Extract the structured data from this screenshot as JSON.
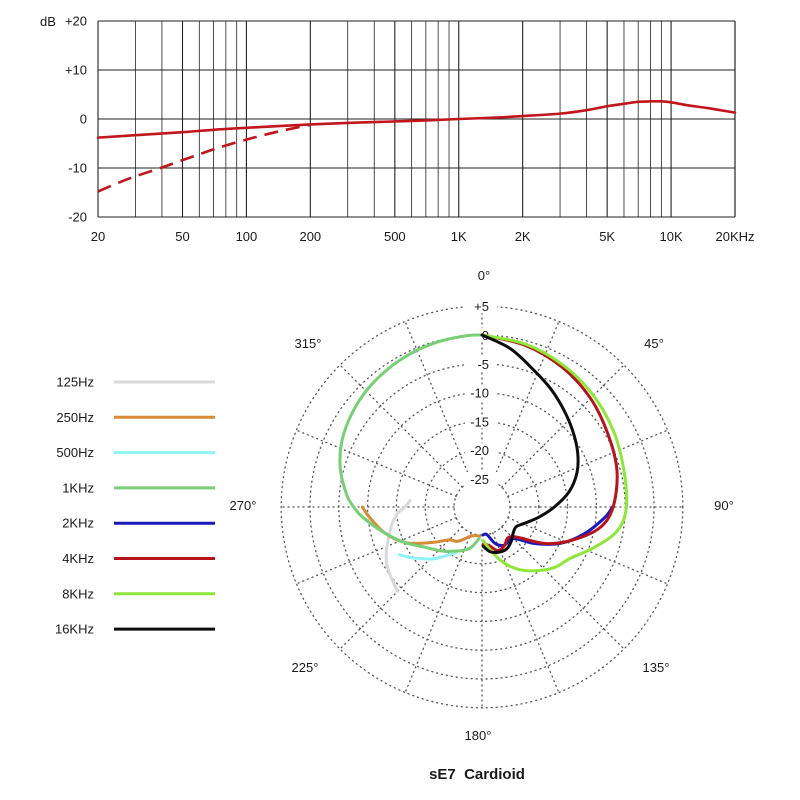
{
  "chart_data": [
    {
      "type": "line",
      "xscale": "log",
      "xlim": [
        20,
        20000
      ],
      "ylim": [
        -20,
        20
      ],
      "y_unit_label": "dB",
      "y_ticks": [
        {
          "value": 20,
          "label": "+20"
        },
        {
          "value": 10,
          "label": "+10"
        },
        {
          "value": 0,
          "label": "0"
        },
        {
          "value": -10,
          "label": "-10"
        },
        {
          "value": -20,
          "label": "-20"
        }
      ],
      "x_ticks": [
        {
          "value": 20,
          "label": "20"
        },
        {
          "value": 50,
          "label": "50"
        },
        {
          "value": 100,
          "label": "100"
        },
        {
          "value": 200,
          "label": "200"
        },
        {
          "value": 500,
          "label": "500"
        },
        {
          "value": 1000,
          "label": "1K"
        },
        {
          "value": 2000,
          "label": "2K"
        },
        {
          "value": 5000,
          "label": "5K"
        },
        {
          "value": 10000,
          "label": "10K"
        },
        {
          "value": 20000,
          "label": "20KHz"
        }
      ],
      "grid": true,
      "series": [
        {
          "style": "solid",
          "color": "#c0161c",
          "x": [
            20,
            30,
            50,
            70,
            100,
            150,
            200,
            300,
            500,
            700,
            1000,
            1500,
            2000,
            3000,
            4000,
            5000,
            6000,
            7000,
            8000,
            9000,
            10000,
            12000,
            15000,
            20000
          ],
          "y": [
            -3.8,
            -3.3,
            -2.7,
            -2.2,
            -1.8,
            -1.4,
            -1.1,
            -0.8,
            -0.5,
            -0.3,
            0.0,
            0.3,
            0.6,
            1.1,
            1.8,
            2.6,
            3.1,
            3.5,
            3.6,
            3.6,
            3.4,
            2.8,
            2.2,
            1.3
          ]
        },
        {
          "style": "dashed",
          "color": "#c0161c",
          "x": [
            20,
            25,
            30,
            40,
            50,
            60,
            70,
            80,
            100,
            120,
            150,
            200
          ],
          "y": [
            -14.8,
            -13.0,
            -11.7,
            -9.9,
            -8.4,
            -7.2,
            -6.2,
            -5.4,
            -4.2,
            -3.3,
            -2.3,
            -1.2
          ]
        }
      ]
    },
    {
      "type": "polar",
      "title": "sE7  Cardioid",
      "angle_labels": [
        {
          "angle": 0,
          "label": "0°"
        },
        {
          "angle": 45,
          "label": "45°"
        },
        {
          "angle": 90,
          "label": "90°"
        },
        {
          "angle": 135,
          "label": "135°"
        },
        {
          "angle": 180,
          "label": "180°"
        },
        {
          "angle": 225,
          "label": "225°"
        },
        {
          "angle": 270,
          "label": "270°"
        },
        {
          "angle": 315,
          "label": "315°"
        }
      ],
      "rings": [
        {
          "db": 5,
          "label": "+5"
        },
        {
          "db": 0,
          "label": "0"
        },
        {
          "db": -5,
          "label": "-5"
        },
        {
          "db": -10,
          "label": "-10"
        },
        {
          "db": -15,
          "label": "-15"
        },
        {
          "db": -20,
          "label": "-20"
        },
        {
          "db": -25,
          "label": "-25"
        }
      ],
      "legend": [
        "125Hz",
        "250Hz",
        "500Hz",
        "1KHz",
        "2KHz",
        "4KHz",
        "8KHz",
        "16KHz"
      ],
      "legend_position": "left",
      "series": [
        {
          "name": "125Hz",
          "color": "#d9d9d9",
          "side": "left",
          "angles": [
            225,
            240,
            255,
            265,
            270,
            275
          ],
          "db": [
            -9.1,
            -10.7,
            -13.3,
            -15.0,
            -16.5,
            -17.3
          ]
        },
        {
          "name": "250Hz",
          "color": "#d88a35",
          "side": "left",
          "angles": [
            270,
            265,
            255,
            245,
            235,
            225,
            215,
            200,
            185
          ],
          "db": [
            -9.1,
            -10.2,
            -12.4,
            -15.2,
            -19.1,
            -21.8,
            -22.6,
            -24.5,
            -24.8
          ]
        },
        {
          "name": "500Hz",
          "color": "#8ff3f8",
          "side": "left",
          "angles": [
            240,
            235,
            229,
            222,
            210
          ],
          "db": [
            -13.3,
            -14.6,
            -16.2,
            -17.8,
            -20.7
          ]
        },
        {
          "name": "1KHz",
          "color": "#78cf76",
          "side": "left",
          "angles": [
            0,
            5,
            15,
            25,
            35,
            45,
            55,
            65,
            75,
            85,
            90,
            95,
            105,
            115,
            125,
            135,
            140,
            145,
            155,
            165,
            175
          ],
          "db": [
            0,
            0,
            -0.2,
            -0.5,
            -0.9,
            -1.4,
            -2.1,
            -3.0,
            -4.4,
            -6.3,
            -7.6,
            -9.1,
            -12.4,
            -15.2,
            -17.7,
            -19.2,
            -19.8,
            -20.5,
            -21.5,
            -22.6,
            -24.4
          ]
        },
        {
          "name": "2KHz",
          "color": "#1a1aba",
          "side": "right",
          "angles": [
            90,
            95,
            105,
            115,
            125,
            135,
            150,
            160,
            170,
            178
          ],
          "db": [
            -7.2,
            -8.5,
            -11.6,
            -14.9,
            -18.8,
            -22.1,
            -22.2,
            -23.1,
            -25.0,
            -25.0
          ]
        },
        {
          "name": "4KHz",
          "color": "#b5141b",
          "side": "right",
          "angles": [
            0,
            15,
            30,
            45,
            60,
            75,
            90,
            100,
            110,
            120,
            135,
            150,
            160,
            170,
            178
          ],
          "db": [
            0,
            -0.8,
            -1.9,
            -3.2,
            -4.6,
            -5.6,
            -7.1,
            -9.1,
            -13.1,
            -17.2,
            -22.6,
            -22.1,
            -21.8,
            -23.1,
            -23.4
          ]
        },
        {
          "name": "8KHz",
          "color": "#8fe63a",
          "side": "right",
          "angles": [
            0,
            15,
            30,
            45,
            60,
            75,
            90,
            100,
            110,
            120,
            130,
            140,
            150,
            160,
            170,
            178
          ],
          "db": [
            0,
            -0.6,
            -1.5,
            -2.5,
            -3.5,
            -4.4,
            -4.8,
            -6.0,
            -9.2,
            -12.1,
            -13.5,
            -15.4,
            -17.4,
            -19.8,
            -22.5,
            -24.0
          ]
        },
        {
          "name": "16KHz",
          "color": "#0d0d0d",
          "side": "right",
          "angles": [
            0,
            10,
            20,
            30,
            40,
            50,
            60,
            70,
            80,
            90,
            100,
            110,
            120,
            130,
            140,
            150,
            160,
            170,
            178
          ],
          "db": [
            0,
            -1.9,
            -4.3,
            -6.1,
            -7.8,
            -9.3,
            -10.7,
            -12.3,
            -14.5,
            -17.3,
            -19.8,
            -21.8,
            -23.0,
            -22.8,
            -22.0,
            -21.4,
            -21.5,
            -22.0,
            -23.0
          ]
        }
      ]
    }
  ]
}
